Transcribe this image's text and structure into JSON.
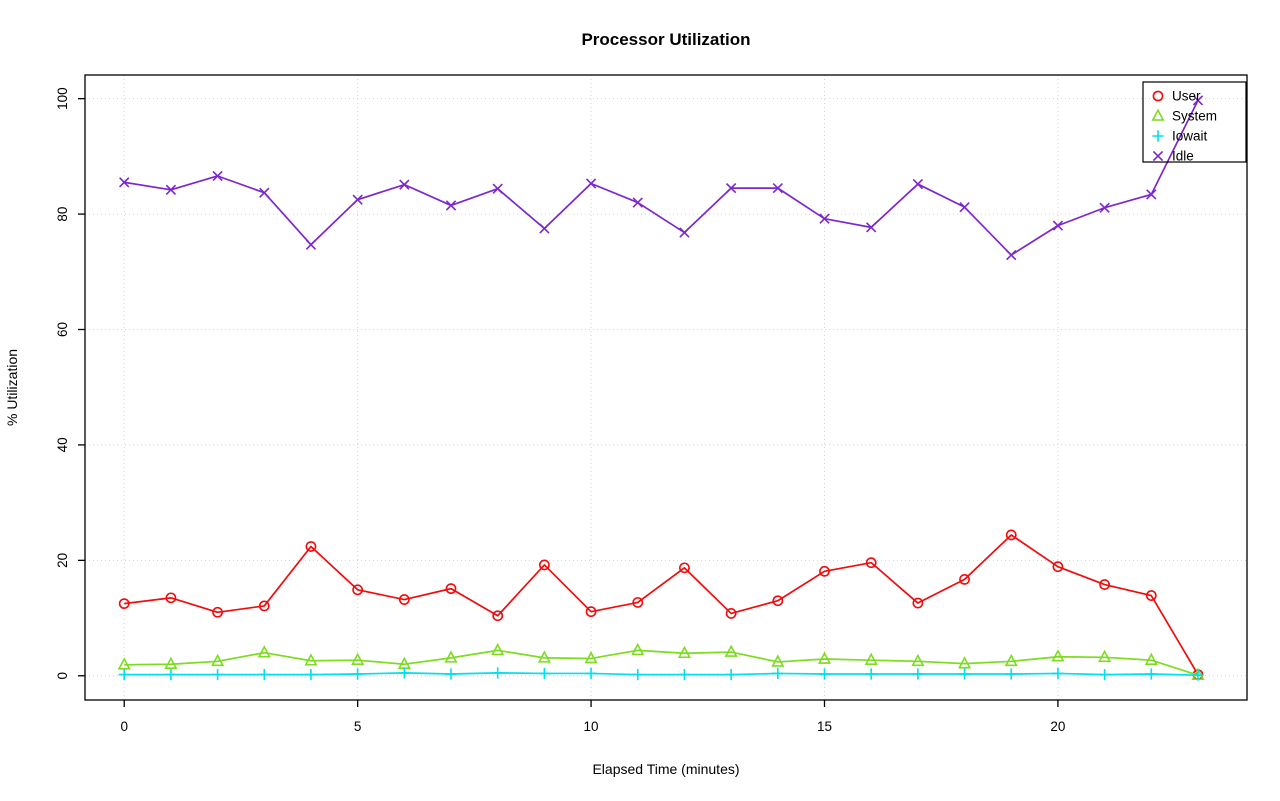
{
  "chart_data": {
    "type": "line",
    "title": "Processor Utilization",
    "xlabel": "Elapsed Time (minutes)",
    "ylabel": "% Utilization",
    "xlim": [
      -0.84,
      24.05
    ],
    "ylim": [
      -4.2,
      104.1
    ],
    "xticks": [
      0,
      5,
      10,
      15,
      20
    ],
    "yticks": [
      0,
      20,
      40,
      60,
      80,
      100
    ],
    "grid": true,
    "grid_style": "dotted",
    "grid_color": "#d3d3d3",
    "legend_position": "top-right",
    "x": [
      0,
      1,
      2,
      3,
      4,
      5,
      6,
      7,
      8,
      9,
      10,
      11,
      12,
      13,
      14,
      15,
      16,
      17,
      18,
      19,
      20,
      21,
      22,
      23
    ],
    "series": [
      {
        "name": "User",
        "color": "#f00c0c",
        "marker": "circle",
        "values": [
          12.5,
          13.5,
          11.0,
          12.1,
          22.4,
          14.9,
          13.2,
          15.1,
          10.4,
          19.2,
          11.1,
          12.7,
          18.7,
          10.8,
          13.0,
          18.1,
          19.6,
          12.6,
          16.7,
          24.4,
          18.9,
          15.8,
          13.9,
          0.2
        ]
      },
      {
        "name": "System",
        "color": "#7cdc1e",
        "marker": "triangle",
        "values": [
          1.9,
          2.0,
          2.5,
          4.0,
          2.6,
          2.7,
          2.0,
          3.1,
          4.4,
          3.1,
          3.0,
          4.4,
          3.9,
          4.1,
          2.4,
          2.9,
          2.7,
          2.5,
          2.1,
          2.5,
          3.3,
          3.2,
          2.7,
          0.1
        ]
      },
      {
        "name": "Iowait",
        "color": "#00e0ee",
        "marker": "plus",
        "values": [
          0.2,
          0.2,
          0.2,
          0.2,
          0.2,
          0.3,
          0.5,
          0.3,
          0.5,
          0.4,
          0.4,
          0.2,
          0.2,
          0.2,
          0.4,
          0.3,
          0.3,
          0.3,
          0.3,
          0.3,
          0.4,
          0.2,
          0.3,
          0.1
        ]
      },
      {
        "name": "Idle",
        "color": "#7d26cd",
        "marker": "x",
        "values": [
          85.5,
          84.2,
          86.6,
          83.7,
          74.7,
          82.5,
          85.1,
          81.5,
          84.4,
          77.5,
          85.3,
          82.0,
          76.8,
          84.5,
          84.5,
          79.2,
          77.7,
          85.2,
          81.2,
          72.9,
          78.0,
          81.1,
          83.4,
          99.7
        ]
      }
    ]
  }
}
